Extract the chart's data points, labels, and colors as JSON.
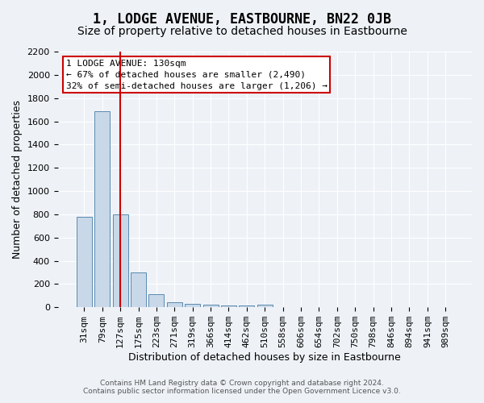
{
  "title": "1, LODGE AVENUE, EASTBOURNE, BN22 0JB",
  "subtitle": "Size of property relative to detached houses in Eastbourne",
  "xlabel": "Distribution of detached houses by size in Eastbourne",
  "ylabel": "Number of detached properties",
  "footer_line1": "Contains HM Land Registry data © Crown copyright and database right 2024.",
  "footer_line2": "Contains public sector information licensed under the Open Government Licence v3.0.",
  "categories": [
    "31sqm",
    "79sqm",
    "127sqm",
    "175sqm",
    "223sqm",
    "271sqm",
    "319sqm",
    "366sqm",
    "414sqm",
    "462sqm",
    "510sqm",
    "558sqm",
    "606sqm",
    "654sqm",
    "702sqm",
    "750sqm",
    "798sqm",
    "846sqm",
    "894sqm",
    "941sqm",
    "989sqm"
  ],
  "bar_heights": [
    775,
    1690,
    800,
    300,
    110,
    40,
    30,
    20,
    15,
    15,
    20,
    0,
    0,
    0,
    0,
    0,
    0,
    0,
    0,
    0,
    0
  ],
  "bar_color": "#c8d8e8",
  "bar_edge_color": "#5a8ab0",
  "red_line_index": 2,
  "red_line_color": "#cc0000",
  "ylim": [
    0,
    2200
  ],
  "yticks": [
    0,
    200,
    400,
    600,
    800,
    1000,
    1200,
    1400,
    1600,
    1800,
    2000,
    2200
  ],
  "annotation_text_line1": "1 LODGE AVENUE: 130sqm",
  "annotation_text_line2": "← 67% of detached houses are smaller (2,490)",
  "annotation_text_line3": "32% of semi-detached houses are larger (1,206) →",
  "annotation_box_color": "#ffffff",
  "annotation_box_edge_color": "#cc0000",
  "bg_color": "#eef2f7",
  "grid_color": "#ffffff",
  "title_fontsize": 12,
  "subtitle_fontsize": 10,
  "axis_label_fontsize": 9,
  "tick_fontsize": 8,
  "annotation_fontsize": 8
}
